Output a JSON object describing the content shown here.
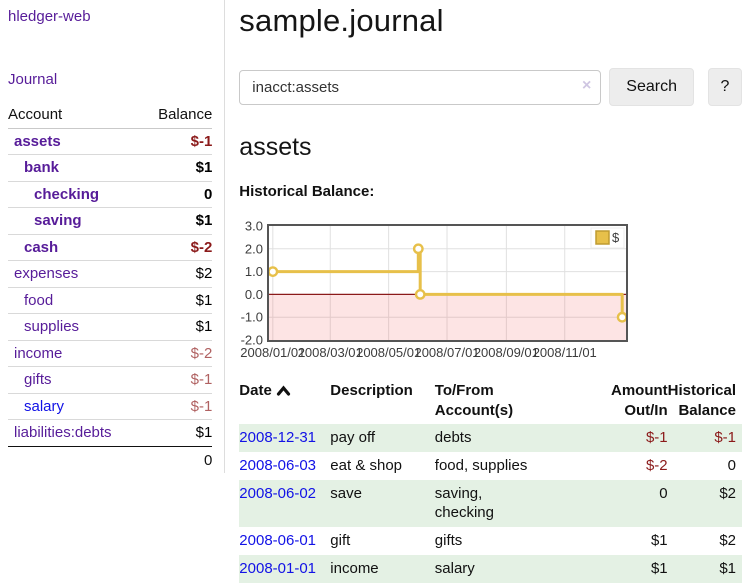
{
  "sidebar": {
    "brand": "hledger-web",
    "nav": {
      "journal_label": "Journal"
    },
    "accounts_table": {
      "headers": {
        "account": "Account",
        "balance": "Balance"
      },
      "rows": [
        {
          "name": "assets",
          "balance": "$-1",
          "indent": 1,
          "emph": true,
          "name_style": "lnk-purple",
          "balance_style": "bal-neg-strong"
        },
        {
          "name": "bank",
          "balance": "$1",
          "indent": 2,
          "emph": true,
          "name_style": "lnk-purple",
          "balance_style": "bal-pos"
        },
        {
          "name": "checking",
          "balance": "0",
          "indent": 3,
          "emph": true,
          "name_style": "lnk-purple",
          "balance_style": "bal-pos"
        },
        {
          "name": "saving",
          "balance": "$1",
          "indent": 3,
          "emph": true,
          "name_style": "lnk-purple",
          "balance_style": "bal-pos"
        },
        {
          "name": "cash",
          "balance": "$-2",
          "indent": 2,
          "emph": true,
          "name_style": "lnk-purple",
          "balance_style": "bal-neg-strong"
        },
        {
          "name": "expenses",
          "balance": "$2",
          "indent": 1,
          "emph": false,
          "name_style": "lnk-purple",
          "balance_style": "bal-pos"
        },
        {
          "name": "food",
          "balance": "$1",
          "indent": 2,
          "emph": false,
          "name_style": "lnk-purple",
          "balance_style": "bal-pos"
        },
        {
          "name": "supplies",
          "balance": "$1",
          "indent": 2,
          "emph": false,
          "name_style": "lnk-purple",
          "balance_style": "bal-pos"
        },
        {
          "name": "income",
          "balance": "$-2",
          "indent": 1,
          "emph": false,
          "name_style": "lnk-purple",
          "balance_style": "bal-neg-soft"
        },
        {
          "name": "gifts",
          "balance": "$-1",
          "indent": 2,
          "emph": false,
          "name_style": "lnk-purple",
          "balance_style": "bal-neg-soft"
        },
        {
          "name": "salary",
          "balance": "$-1",
          "indent": 2,
          "emph": false,
          "name_style": "lnk-blue",
          "balance_style": "bal-neg-soft"
        },
        {
          "name": "liabilities:debts",
          "balance": "$1",
          "indent": 1,
          "emph": false,
          "name_style": "lnk-purple",
          "balance_style": "bal-pos"
        }
      ],
      "total": "0"
    }
  },
  "header": {
    "title": "sample.journal"
  },
  "search": {
    "query_value": "inacct:assets",
    "clear_icon": "×",
    "search_button_label": "Search",
    "help_button_label": "?"
  },
  "account_page": {
    "title": "assets",
    "chart_label": "Historical Balance:"
  },
  "chart_data": {
    "type": "line",
    "step": true,
    "title": "Historical Balance:",
    "series": [
      {
        "name": "$",
        "color": "#e7c04a",
        "points": [
          [
            "2008-01-01",
            1
          ],
          [
            "2008-06-01",
            2
          ],
          [
            "2008-06-03",
            0
          ],
          [
            "2008-12-31",
            -1
          ]
        ]
      }
    ],
    "ylim": [
      -2,
      3
    ],
    "x_domain": [
      "2007-12-28",
      "2009-01-04"
    ],
    "x_ticks": [
      {
        "date": "2008-01-01",
        "label": "2008/01/01"
      },
      {
        "date": "2008-03-01",
        "label": "2008/03/01"
      },
      {
        "date": "2008-05-01",
        "label": "2008/05/01"
      },
      {
        "date": "2008-07-01",
        "label": "2008/07/01"
      },
      {
        "date": "2008-09-01",
        "label": "2008/09/01"
      },
      {
        "date": "2008-11-01",
        "label": "2008/11/01"
      }
    ],
    "y_ticks": [
      {
        "value": 3,
        "label": "3.0"
      },
      {
        "value": 2,
        "label": "2.0"
      },
      {
        "value": 1,
        "label": "1.0"
      },
      {
        "value": 0,
        "label": "0.0"
      },
      {
        "value": -1,
        "label": "-1.0"
      },
      {
        "value": -2,
        "label": "-2.0"
      }
    ],
    "grid": true,
    "plot_border_color": "#555555",
    "gridline_color": "#e0e0e0",
    "zero_line_color": "#8b1a1a",
    "negative_region_fill": "rgba(245,90,90,0.16)",
    "marker": {
      "shape": "circle",
      "fill": "#ffffff"
    },
    "legend": {
      "position": "top-right",
      "entries": [
        {
          "label": "$",
          "color": "#e7c04a",
          "border": "#bf9b30"
        }
      ]
    }
  },
  "register_table": {
    "sort": {
      "column": "Date",
      "direction": "ascending"
    },
    "headers": {
      "date": "Date",
      "description": "Description",
      "accounts": "To/From\nAccount(s)",
      "amount": "Amount\nOut/In",
      "balance": "Historical\nBalance"
    },
    "rows": [
      {
        "date": "2008-12-31",
        "description": "pay off",
        "accounts": "debts",
        "amount": "$-1",
        "amount_style": "neg",
        "balance": "$-1",
        "balance_style": "neg"
      },
      {
        "date": "2008-06-03",
        "description": "eat & shop",
        "accounts": "food, supplies",
        "amount": "$-2",
        "amount_style": "neg",
        "balance": "0",
        "balance_style": ""
      },
      {
        "date": "2008-06-02",
        "description": "save",
        "accounts": "saving,\nchecking",
        "amount": "0",
        "amount_style": "",
        "balance": "$2",
        "balance_style": ""
      },
      {
        "date": "2008-06-01",
        "description": "gift",
        "accounts": "gifts",
        "amount": "$1",
        "amount_style": "",
        "balance": "$2",
        "balance_style": ""
      },
      {
        "date": "2008-01-01",
        "description": "income",
        "accounts": "salary",
        "amount": "$1",
        "amount_style": "",
        "balance": "$1",
        "balance_style": ""
      }
    ]
  }
}
